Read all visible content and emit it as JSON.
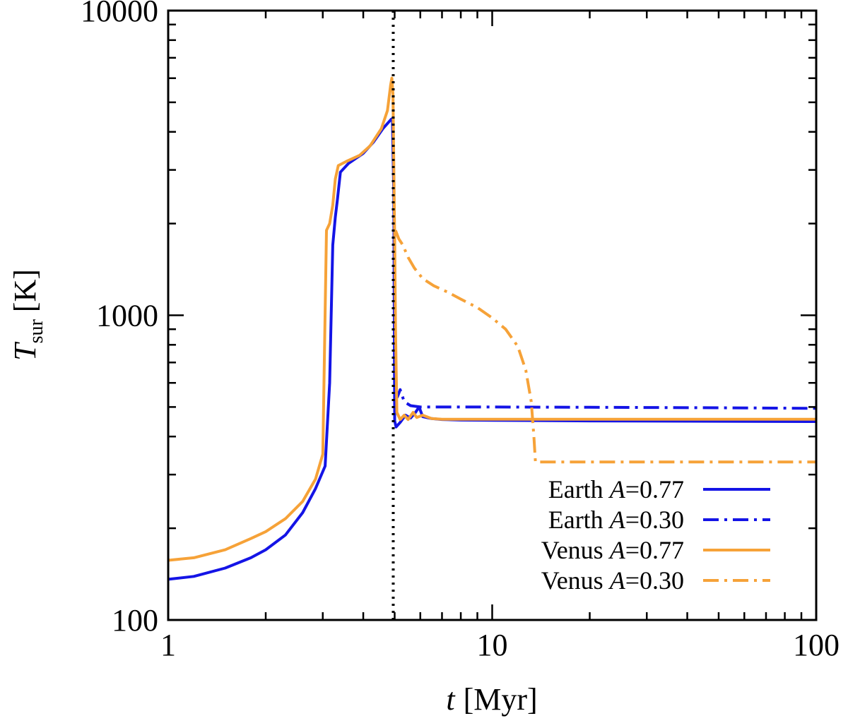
{
  "chart_data": {
    "type": "line",
    "xscale": "log",
    "yscale": "log",
    "xlim": [
      1,
      100
    ],
    "ylim": [
      100,
      10000
    ],
    "xlabel": {
      "symbol": "t",
      "unit": "[Myr]"
    },
    "ylabel": {
      "symbol": "T",
      "subscript": "sur",
      "unit": "[K]"
    },
    "x_ticks": [
      {
        "value": 1,
        "label": "1"
      },
      {
        "value": 10,
        "label": "10"
      },
      {
        "value": 100,
        "label": "100"
      }
    ],
    "y_ticks": [
      {
        "value": 100,
        "label": "100"
      },
      {
        "value": 1000,
        "label": "1000"
      },
      {
        "value": 10000,
        "label": "10000"
      }
    ],
    "vline": {
      "x": 4.95,
      "style": "dotted",
      "color": "#000000"
    },
    "legend_position": "lower-right",
    "series": [
      {
        "name": "Earth A=0.77",
        "planet": "Earth",
        "albedo_label": "A",
        "albedo_value": "=0.77",
        "color": "#1414e6",
        "dash": "solid",
        "points": [
          [
            1,
            136
          ],
          [
            1.2,
            139
          ],
          [
            1.5,
            148
          ],
          [
            1.8,
            160
          ],
          [
            2.0,
            170
          ],
          [
            2.3,
            190
          ],
          [
            2.6,
            225
          ],
          [
            2.85,
            270
          ],
          [
            3.05,
            320
          ],
          [
            3.15,
            600
          ],
          [
            3.22,
            1700
          ],
          [
            3.28,
            2100
          ],
          [
            3.33,
            2400
          ],
          [
            3.4,
            2950
          ],
          [
            3.6,
            3150
          ],
          [
            4.0,
            3400
          ],
          [
            4.3,
            3700
          ],
          [
            4.6,
            4100
          ],
          [
            4.88,
            4400
          ],
          [
            4.92,
            4420
          ],
          [
            4.97,
            2500
          ],
          [
            5.0,
            450
          ],
          [
            5.05,
            430
          ],
          [
            5.2,
            445
          ],
          [
            5.4,
            470
          ],
          [
            5.6,
            460
          ],
          [
            5.8,
            480
          ],
          [
            5.95,
            500
          ],
          [
            6.1,
            465
          ],
          [
            6.5,
            458
          ],
          [
            7.0,
            455
          ],
          [
            8.0,
            453
          ],
          [
            10,
            452
          ],
          [
            20,
            450
          ],
          [
            50,
            449
          ],
          [
            100,
            448
          ]
        ]
      },
      {
        "name": "Earth A=0.30",
        "planet": "Earth",
        "albedo_label": "A",
        "albedo_value": "=0.30",
        "color": "#1414e6",
        "dash": "dashdot",
        "points": [
          [
            4.97,
            520
          ],
          [
            5.1,
            540
          ],
          [
            5.2,
            570
          ],
          [
            5.35,
            520
          ],
          [
            5.6,
            505
          ],
          [
            6.0,
            500
          ],
          [
            7.0,
            500
          ],
          [
            10,
            500
          ],
          [
            20,
            499
          ],
          [
            50,
            497
          ],
          [
            100,
            495
          ]
        ]
      },
      {
        "name": "Venus A=0.77",
        "planet": "Venus",
        "albedo_label": "A",
        "albedo_value": "=0.77",
        "color": "#f6a238",
        "dash": "solid",
        "points": [
          [
            1,
            157
          ],
          [
            1.2,
            160
          ],
          [
            1.5,
            170
          ],
          [
            1.8,
            185
          ],
          [
            2.0,
            195
          ],
          [
            2.3,
            215
          ],
          [
            2.6,
            245
          ],
          [
            2.85,
            290
          ],
          [
            3.0,
            350
          ],
          [
            3.08,
            1900
          ],
          [
            3.15,
            2000
          ],
          [
            3.22,
            2300
          ],
          [
            3.28,
            2800
          ],
          [
            3.35,
            3100
          ],
          [
            3.55,
            3200
          ],
          [
            3.9,
            3350
          ],
          [
            4.2,
            3600
          ],
          [
            4.55,
            4100
          ],
          [
            4.75,
            4700
          ],
          [
            4.86,
            5700
          ],
          [
            4.9,
            6000
          ],
          [
            4.94,
            5300
          ],
          [
            5.0,
            1800
          ],
          [
            5.03,
            900
          ],
          [
            5.08,
            480
          ],
          [
            5.2,
            455
          ],
          [
            5.35,
            470
          ],
          [
            5.5,
            455
          ],
          [
            5.7,
            480
          ],
          [
            5.85,
            462
          ],
          [
            6.1,
            470
          ],
          [
            6.5,
            458
          ],
          [
            7.0,
            456
          ],
          [
            8.0,
            456
          ],
          [
            10,
            456
          ],
          [
            20,
            456
          ],
          [
            50,
            456
          ],
          [
            100,
            456
          ]
        ]
      },
      {
        "name": "Venus A=0.30",
        "planet": "Venus",
        "albedo_label": "A",
        "albedo_value": "=0.30",
        "color": "#f6a238",
        "dash": "dashdot",
        "points": [
          [
            5.03,
            1900
          ],
          [
            5.15,
            1780
          ],
          [
            5.3,
            1700
          ],
          [
            5.5,
            1550
          ],
          [
            5.75,
            1430
          ],
          [
            6.1,
            1320
          ],
          [
            6.6,
            1250
          ],
          [
            7.3,
            1190
          ],
          [
            8.0,
            1130
          ],
          [
            9.0,
            1060
          ],
          [
            10.0,
            980
          ],
          [
            11.0,
            900
          ],
          [
            12.0,
            790
          ],
          [
            12.7,
            660
          ],
          [
            13.2,
            520
          ],
          [
            13.45,
            400
          ],
          [
            13.6,
            330
          ],
          [
            14.0,
            330
          ],
          [
            20,
            330
          ],
          [
            50,
            330
          ],
          [
            100,
            330
          ]
        ]
      }
    ]
  }
}
